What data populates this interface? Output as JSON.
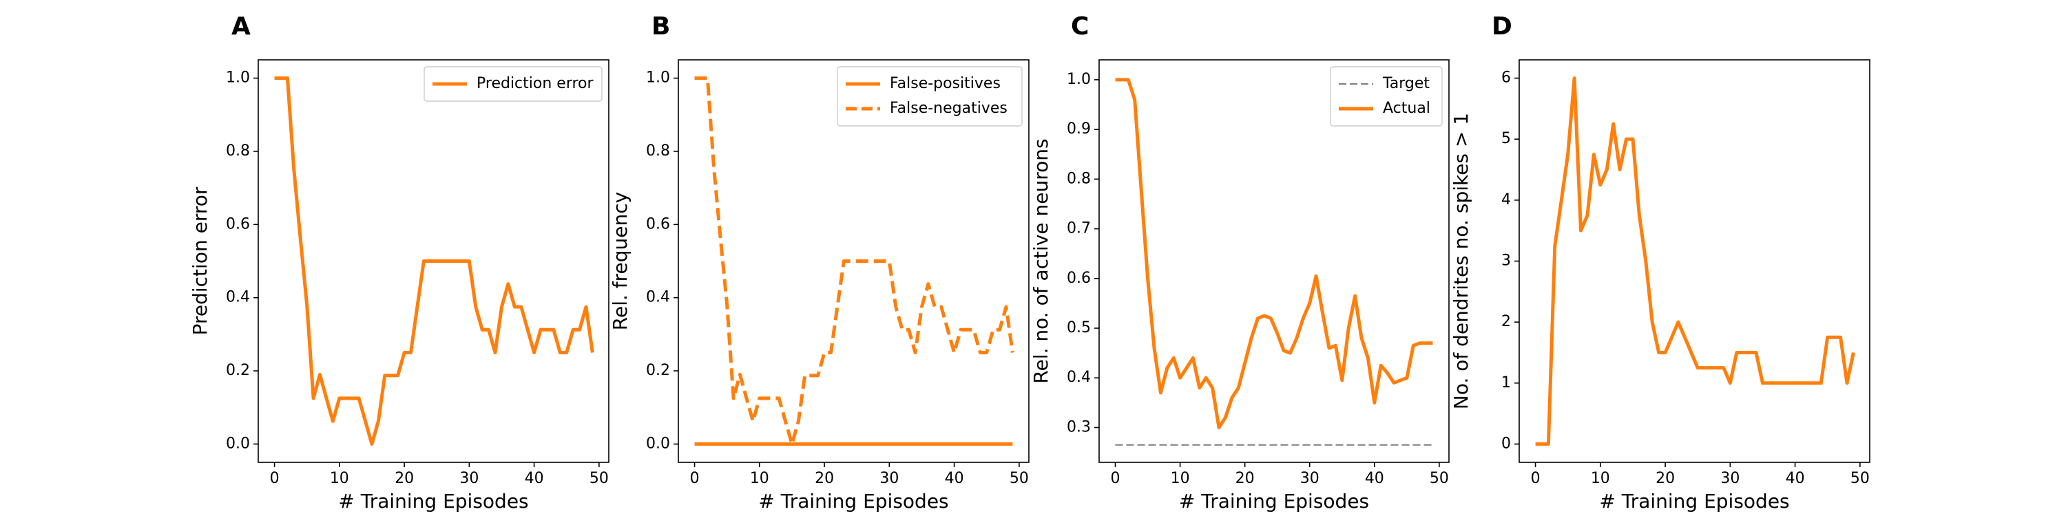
{
  "chart_data": [
    {
      "panel": "A",
      "type": "line",
      "xlabel": "# Training Episodes",
      "ylabel": "Prediction error",
      "xlim": [
        -2.5,
        51.5
      ],
      "ylim": [
        -0.05,
        1.05
      ],
      "xticks": [
        0,
        10,
        20,
        30,
        40,
        50
      ],
      "yticks": [
        0.0,
        0.2,
        0.4,
        0.6,
        0.8,
        1.0
      ],
      "ytick_labels": [
        "0.0",
        "0.2",
        "0.4",
        "0.6",
        "0.8",
        "1.0"
      ],
      "grid": false,
      "legend": "top-right",
      "series": [
        {
          "name": "Prediction error",
          "style": "solid",
          "color": "#ff7f0e",
          "x": [
            0,
            1,
            2,
            3,
            4,
            5,
            6,
            7,
            8,
            9,
            10,
            11,
            12,
            13,
            14,
            15,
            16,
            17,
            18,
            19,
            20,
            21,
            22,
            23,
            24,
            25,
            26,
            27,
            28,
            29,
            30,
            31,
            32,
            33,
            34,
            35,
            36,
            37,
            38,
            39,
            40,
            41,
            42,
            43,
            44,
            45,
            46,
            47,
            48,
            49
          ],
          "y": [
            1.0,
            1.0,
            1.0,
            0.75,
            0.56,
            0.38,
            0.125,
            0.19,
            0.125,
            0.0625,
            0.125,
            0.125,
            0.125,
            0.125,
            0.0625,
            0.0,
            0.0625,
            0.1875,
            0.1875,
            0.1875,
            0.25,
            0.25,
            0.375,
            0.5,
            0.5,
            0.5,
            0.5,
            0.5,
            0.5,
            0.5,
            0.5,
            0.375,
            0.3125,
            0.3125,
            0.25,
            0.375,
            0.4375,
            0.375,
            0.375,
            0.3125,
            0.25,
            0.3125,
            0.3125,
            0.3125,
            0.25,
            0.25,
            0.3125,
            0.3125,
            0.375,
            0.25
          ]
        }
      ]
    },
    {
      "panel": "B",
      "type": "line",
      "xlabel": "# Training Episodes",
      "ylabel": "Rel. frequency",
      "xlim": [
        -2.5,
        51.5
      ],
      "ylim": [
        -0.05,
        1.05
      ],
      "xticks": [
        0,
        10,
        20,
        30,
        40,
        50
      ],
      "yticks": [
        0.0,
        0.2,
        0.4,
        0.6,
        0.8,
        1.0
      ],
      "ytick_labels": [
        "0.0",
        "0.2",
        "0.4",
        "0.6",
        "0.8",
        "1.0"
      ],
      "grid": false,
      "legend": "top-right",
      "series": [
        {
          "name": "False-positives",
          "style": "solid",
          "color": "#ff7f0e",
          "x": [
            0,
            49
          ],
          "y": [
            0.0,
            0.0
          ]
        },
        {
          "name": "False-negatives",
          "style": "dashed",
          "color": "#ff7f0e",
          "x": [
            0,
            1,
            2,
            3,
            4,
            5,
            6,
            7,
            8,
            9,
            10,
            11,
            12,
            13,
            14,
            15,
            16,
            17,
            18,
            19,
            20,
            21,
            22,
            23,
            24,
            25,
            26,
            27,
            28,
            29,
            30,
            31,
            32,
            33,
            34,
            35,
            36,
            37,
            38,
            39,
            40,
            41,
            42,
            43,
            44,
            45,
            46,
            47,
            48,
            49
          ],
          "y": [
            1.0,
            1.0,
            1.0,
            0.75,
            0.56,
            0.38,
            0.125,
            0.19,
            0.125,
            0.0625,
            0.125,
            0.125,
            0.125,
            0.125,
            0.0625,
            0.0,
            0.0625,
            0.1875,
            0.1875,
            0.1875,
            0.25,
            0.25,
            0.375,
            0.5,
            0.5,
            0.5,
            0.5,
            0.5,
            0.5,
            0.5,
            0.5,
            0.375,
            0.3125,
            0.3125,
            0.25,
            0.375,
            0.4375,
            0.375,
            0.375,
            0.3125,
            0.25,
            0.3125,
            0.3125,
            0.3125,
            0.25,
            0.25,
            0.3125,
            0.3125,
            0.375,
            0.25
          ]
        }
      ]
    },
    {
      "panel": "C",
      "type": "line",
      "xlabel": "# Training Episodes",
      "ylabel": "Rel. no. of active neurons",
      "xlim": [
        -2.5,
        51.5
      ],
      "ylim": [
        0.23,
        1.04
      ],
      "xticks": [
        0,
        10,
        20,
        30,
        40,
        50
      ],
      "yticks": [
        0.3,
        0.4,
        0.5,
        0.6,
        0.7,
        0.8,
        0.9,
        1.0
      ],
      "ytick_labels": [
        "0.3",
        "0.4",
        "0.5",
        "0.6",
        "0.7",
        "0.8",
        "0.9",
        "1.0"
      ],
      "grid": false,
      "legend": "top-right",
      "series": [
        {
          "name": "Target",
          "style": "dashed",
          "color": "#808080",
          "x": [
            0,
            49
          ],
          "y": [
            0.265,
            0.265
          ]
        },
        {
          "name": "Actual",
          "style": "solid",
          "color": "#ff7f0e",
          "x": [
            0,
            1,
            2,
            3,
            4,
            5,
            6,
            7,
            8,
            9,
            10,
            11,
            12,
            13,
            14,
            15,
            16,
            17,
            18,
            19,
            20,
            21,
            22,
            23,
            24,
            25,
            26,
            27,
            28,
            29,
            30,
            31,
            32,
            33,
            34,
            35,
            36,
            37,
            38,
            39,
            40,
            41,
            42,
            43,
            44,
            45,
            46,
            47,
            48,
            49
          ],
          "y": [
            1.0,
            1.0,
            1.0,
            0.96,
            0.78,
            0.6,
            0.46,
            0.37,
            0.42,
            0.44,
            0.4,
            0.42,
            0.44,
            0.38,
            0.4,
            0.38,
            0.3,
            0.32,
            0.36,
            0.38,
            0.43,
            0.48,
            0.52,
            0.525,
            0.52,
            0.49,
            0.455,
            0.45,
            0.48,
            0.52,
            0.55,
            0.605,
            0.53,
            0.46,
            0.465,
            0.395,
            0.5,
            0.565,
            0.48,
            0.44,
            0.35,
            0.425,
            0.41,
            0.39,
            0.395,
            0.4,
            0.465,
            0.47,
            0.47,
            0.47
          ]
        }
      ]
    },
    {
      "panel": "D",
      "type": "line",
      "xlabel": "# Training Episodes",
      "ylabel": "No. of dendrites no. spikes > 1",
      "xlim": [
        -2.5,
        51.5
      ],
      "ylim": [
        -0.3,
        6.3
      ],
      "xticks": [
        0,
        10,
        20,
        30,
        40,
        50
      ],
      "yticks": [
        0,
        1,
        2,
        3,
        4,
        5,
        6
      ],
      "ytick_labels": [
        "0",
        "1",
        "2",
        "3",
        "4",
        "5",
        "6"
      ],
      "grid": false,
      "legend": "none",
      "series": [
        {
          "style": "solid",
          "color": "#ff7f0e",
          "x": [
            0,
            1,
            2,
            3,
            4,
            5,
            6,
            7,
            8,
            9,
            10,
            11,
            12,
            13,
            14,
            15,
            16,
            17,
            18,
            19,
            20,
            21,
            22,
            23,
            24,
            25,
            26,
            27,
            28,
            29,
            30,
            31,
            32,
            33,
            34,
            35,
            36,
            37,
            38,
            39,
            40,
            41,
            42,
            43,
            44,
            45,
            46,
            47,
            48,
            49
          ],
          "y": [
            0,
            0,
            0,
            3.25,
            4.0,
            4.75,
            6.0,
            3.5,
            3.75,
            4.75,
            4.25,
            4.5,
            5.25,
            4.5,
            5.0,
            5.0,
            3.75,
            3.0,
            2.0,
            1.5,
            1.5,
            1.75,
            2.0,
            1.75,
            1.5,
            1.25,
            1.25,
            1.25,
            1.25,
            1.25,
            1.0,
            1.5,
            1.5,
            1.5,
            1.5,
            1.0,
            1.0,
            1.0,
            1.0,
            1.0,
            1.0,
            1.0,
            1.0,
            1.0,
            1.0,
            1.75,
            1.75,
            1.75,
            1.0,
            1.5
          ]
        }
      ]
    }
  ]
}
